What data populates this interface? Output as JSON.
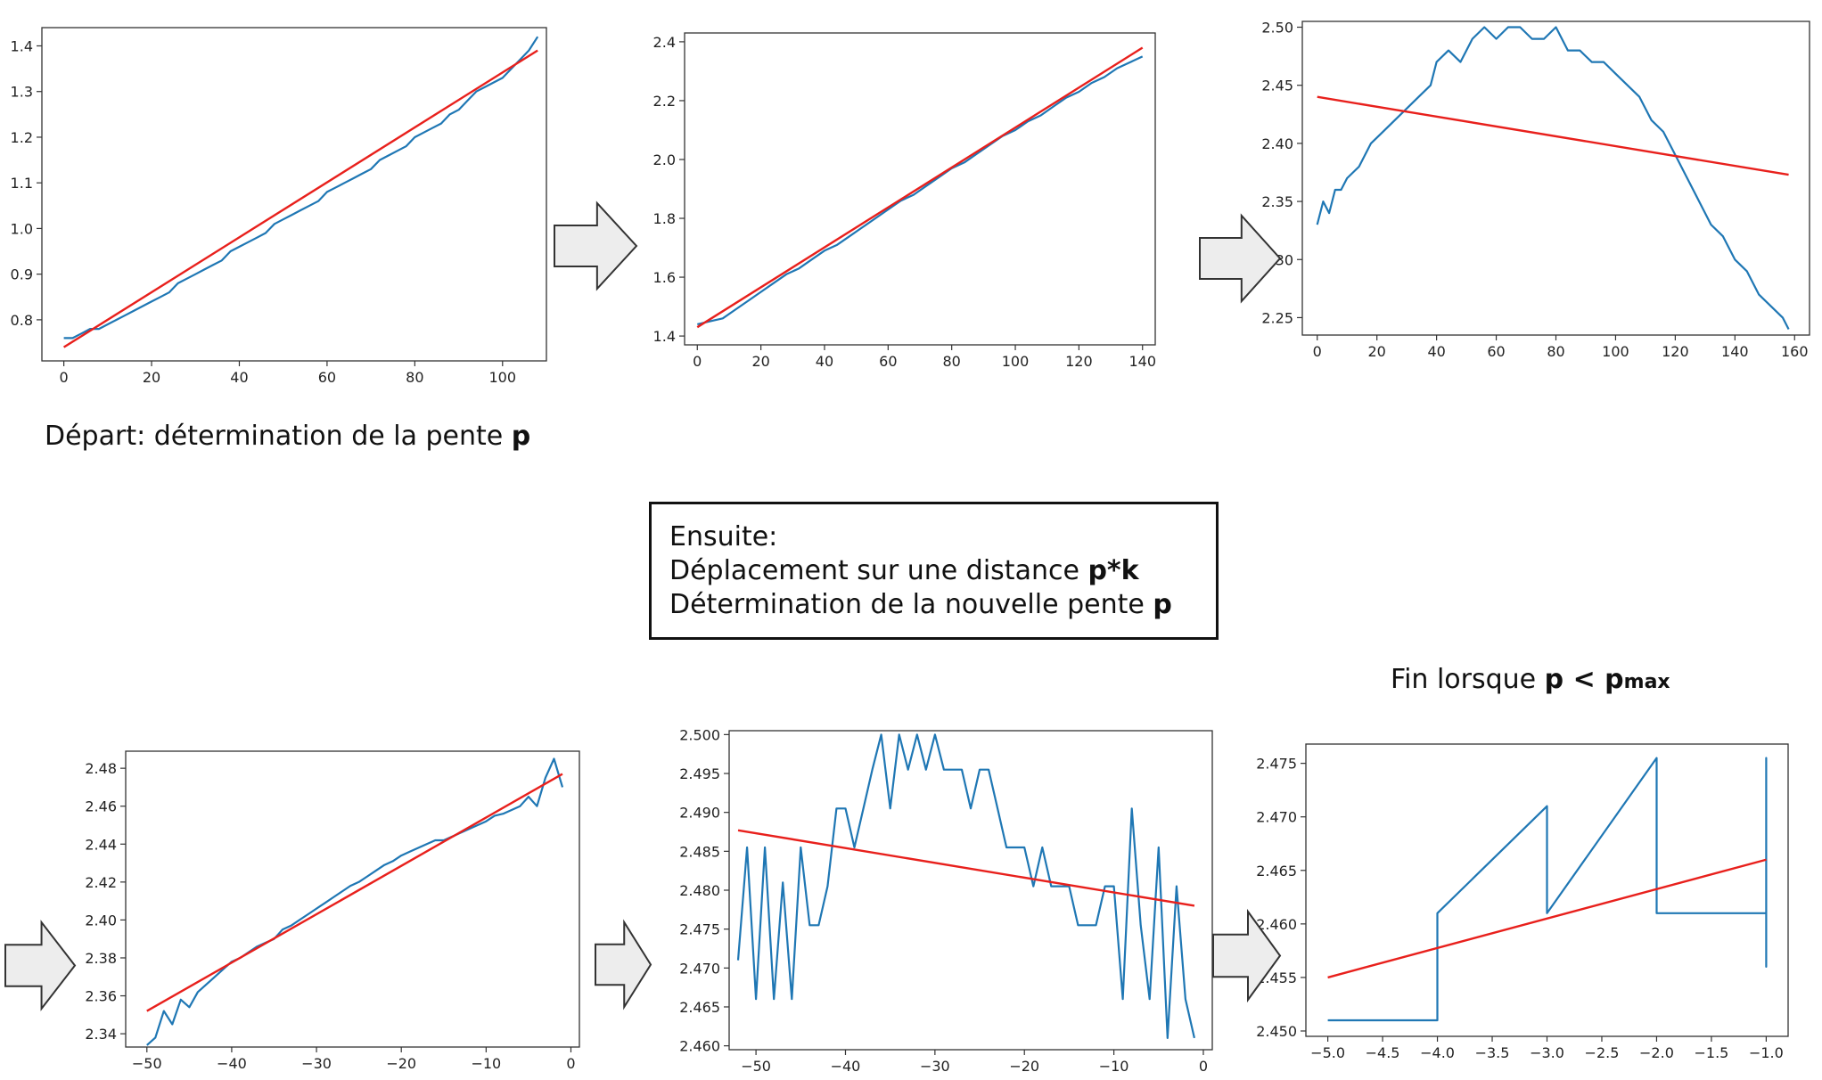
{
  "captions": {
    "start_text": "Départ: détermination de la pente ",
    "start_bold": "p",
    "box_line1": "Ensuite:",
    "box_line2_text": "Déplacement sur une distance ",
    "box_line2_bold": "p*k",
    "box_line3_text": "Détermination de la nouvelle pente ",
    "box_line3_bold": "p",
    "end_text": "Fin lorsque ",
    "end_bold_p": "p < p",
    "end_bold_sub": "max"
  },
  "colors": {
    "series": "#1f77b4",
    "fit": "#e8201c",
    "arrow_fill": "#ededed",
    "arrow_stroke": "#333333"
  },
  "chart_data": [
    {
      "type": "line",
      "xlim": [
        -5,
        110
      ],
      "ylim": [
        0.71,
        1.44
      ],
      "xticks": [
        0,
        20,
        40,
        60,
        80,
        100
      ],
      "yticks": [
        0.8,
        0.9,
        1.0,
        1.1,
        1.2,
        1.3,
        1.4
      ],
      "yfmt": 1,
      "series": [
        {
          "x": [
            0,
            2,
            4,
            6,
            8,
            10,
            12,
            14,
            16,
            18,
            20,
            22,
            24,
            26,
            28,
            30,
            32,
            34,
            36,
            38,
            40,
            42,
            44,
            46,
            48,
            50,
            52,
            54,
            56,
            58,
            60,
            62,
            64,
            66,
            68,
            70,
            72,
            74,
            76,
            78,
            80,
            82,
            84,
            86,
            88,
            90,
            92,
            94,
            96,
            98,
            100,
            102,
            104,
            106,
            108
          ],
          "y": [
            0.76,
            0.76,
            0.77,
            0.78,
            0.78,
            0.79,
            0.8,
            0.81,
            0.82,
            0.83,
            0.84,
            0.85,
            0.86,
            0.88,
            0.89,
            0.9,
            0.91,
            0.92,
            0.93,
            0.95,
            0.96,
            0.97,
            0.98,
            0.99,
            1.01,
            1.02,
            1.03,
            1.04,
            1.05,
            1.06,
            1.08,
            1.09,
            1.1,
            1.11,
            1.12,
            1.13,
            1.15,
            1.16,
            1.17,
            1.18,
            1.2,
            1.21,
            1.22,
            1.23,
            1.25,
            1.26,
            1.28,
            1.3,
            1.31,
            1.32,
            1.33,
            1.35,
            1.37,
            1.39,
            1.42
          ]
        }
      ],
      "fit": {
        "x": [
          0,
          108
        ],
        "y": [
          0.74,
          1.39
        ]
      }
    },
    {
      "type": "line",
      "xlim": [
        -4,
        144
      ],
      "ylim": [
        1.37,
        2.43
      ],
      "xticks": [
        0,
        20,
        40,
        60,
        80,
        100,
        120,
        140
      ],
      "yticks": [
        1.4,
        1.6,
        1.8,
        2.0,
        2.2,
        2.4
      ],
      "yfmt": 1,
      "series": [
        {
          "x": [
            0,
            4,
            8,
            12,
            16,
            20,
            24,
            28,
            32,
            36,
            40,
            44,
            48,
            52,
            56,
            60,
            64,
            68,
            72,
            76,
            80,
            84,
            88,
            92,
            96,
            100,
            104,
            108,
            112,
            116,
            120,
            124,
            128,
            132,
            136,
            140
          ],
          "y": [
            1.44,
            1.45,
            1.46,
            1.49,
            1.52,
            1.55,
            1.58,
            1.61,
            1.63,
            1.66,
            1.69,
            1.71,
            1.74,
            1.77,
            1.8,
            1.83,
            1.86,
            1.88,
            1.91,
            1.94,
            1.97,
            1.99,
            2.02,
            2.05,
            2.08,
            2.1,
            2.13,
            2.15,
            2.18,
            2.21,
            2.23,
            2.26,
            2.28,
            2.31,
            2.33,
            2.35
          ]
        }
      ],
      "fit": {
        "x": [
          0,
          140
        ],
        "y": [
          1.43,
          2.38
        ]
      }
    },
    {
      "type": "line",
      "xlim": [
        -5,
        165
      ],
      "ylim": [
        2.235,
        2.505
      ],
      "xticks": [
        0,
        20,
        40,
        60,
        80,
        100,
        120,
        140,
        160
      ],
      "yticks": [
        2.25,
        2.3,
        2.35,
        2.4,
        2.45,
        2.5
      ],
      "yfmt": 2,
      "series": [
        {
          "x": [
            0,
            2,
            4,
            6,
            8,
            10,
            14,
            18,
            22,
            26,
            30,
            34,
            38,
            40,
            44,
            48,
            52,
            56,
            60,
            64,
            68,
            72,
            76,
            80,
            84,
            88,
            92,
            96,
            100,
            104,
            108,
            112,
            116,
            120,
            124,
            128,
            132,
            136,
            140,
            144,
            148,
            152,
            156,
            158
          ],
          "y": [
            2.33,
            2.35,
            2.34,
            2.36,
            2.36,
            2.37,
            2.38,
            2.4,
            2.41,
            2.42,
            2.43,
            2.44,
            2.45,
            2.47,
            2.48,
            2.47,
            2.49,
            2.5,
            2.49,
            2.5,
            2.5,
            2.49,
            2.49,
            2.5,
            2.48,
            2.48,
            2.47,
            2.47,
            2.46,
            2.45,
            2.44,
            2.42,
            2.41,
            2.39,
            2.37,
            2.35,
            2.33,
            2.32,
            2.3,
            2.29,
            2.27,
            2.26,
            2.25,
            2.24
          ]
        }
      ],
      "fit": {
        "x": [
          0,
          158
        ],
        "y": [
          2.44,
          2.373
        ]
      }
    },
    {
      "type": "line",
      "xlim": [
        -52.5,
        1
      ],
      "ylim": [
        2.333,
        2.489
      ],
      "xticks": [
        -50,
        -40,
        -30,
        -20,
        -10,
        0
      ],
      "yticks": [
        2.34,
        2.36,
        2.38,
        2.4,
        2.42,
        2.44,
        2.46,
        2.48
      ],
      "yfmt": 2,
      "series": [
        {
          "x": [
            -50,
            -49,
            -48,
            -47,
            -46,
            -45,
            -44,
            -43,
            -42,
            -41,
            -40,
            -39,
            -38,
            -37,
            -36,
            -35,
            -34,
            -33,
            -32,
            -31,
            -30,
            -29,
            -28,
            -27,
            -26,
            -25,
            -24,
            -23,
            -22,
            -21,
            -20,
            -19,
            -18,
            -17,
            -16,
            -15,
            -14,
            -13,
            -12,
            -11,
            -10,
            -9,
            -8,
            -7,
            -6,
            -5,
            -4,
            -3,
            -2,
            -1
          ],
          "y": [
            2.334,
            2.338,
            2.352,
            2.345,
            2.358,
            2.354,
            2.362,
            2.366,
            2.37,
            2.374,
            2.378,
            2.38,
            2.383,
            2.386,
            2.388,
            2.39,
            2.395,
            2.397,
            2.4,
            2.403,
            2.406,
            2.409,
            2.412,
            2.415,
            2.418,
            2.42,
            2.423,
            2.426,
            2.429,
            2.431,
            2.434,
            2.436,
            2.438,
            2.44,
            2.442,
            2.442,
            2.444,
            2.446,
            2.448,
            2.45,
            2.452,
            2.455,
            2.456,
            2.458,
            2.46,
            2.465,
            2.46,
            2.475,
            2.485,
            2.47
          ]
        }
      ],
      "fit": {
        "x": [
          -50,
          -1
        ],
        "y": [
          2.352,
          2.477
        ]
      }
    },
    {
      "type": "line",
      "xlim": [
        -53,
        1
      ],
      "ylim": [
        2.4595,
        2.5005
      ],
      "xticks": [
        -50,
        -40,
        -30,
        -20,
        -10,
        0
      ],
      "yticks": [
        2.46,
        2.465,
        2.47,
        2.475,
        2.48,
        2.485,
        2.49,
        2.495,
        2.5
      ],
      "yfmt": 3,
      "series": [
        {
          "x": [
            -52,
            -51,
            -50,
            -49,
            -48,
            -47,
            -46,
            -45,
            -44,
            -43,
            -42,
            -41,
            -40,
            -39,
            -38,
            -37,
            -36,
            -35,
            -34,
            -33,
            -32,
            -31,
            -30,
            -29,
            -28,
            -27,
            -26,
            -25,
            -24,
            -23,
            -22,
            -21,
            -20,
            -19,
            -18,
            -17,
            -16,
            -15,
            -14,
            -13,
            -12,
            -11,
            -10,
            -9,
            -8,
            -7,
            -6,
            -5,
            -4,
            -3,
            -2,
            -1
          ],
          "y": [
            2.471,
            2.4855,
            2.466,
            2.4855,
            2.466,
            2.481,
            2.466,
            2.4855,
            2.4755,
            2.4755,
            2.4805,
            2.4905,
            2.4905,
            2.4855,
            2.4905,
            2.4955,
            2.5,
            2.4905,
            2.5,
            2.4955,
            2.5,
            2.4955,
            2.5,
            2.4955,
            2.4955,
            2.4955,
            2.4905,
            2.4955,
            2.4955,
            2.4905,
            2.4855,
            2.4855,
            2.4855,
            2.4805,
            2.4855,
            2.4805,
            2.4805,
            2.4805,
            2.4755,
            2.4755,
            2.4755,
            2.4805,
            2.4805,
            2.466,
            2.4905,
            2.4755,
            2.466,
            2.4855,
            2.461,
            2.4805,
            2.466,
            2.461
          ]
        }
      ],
      "fit": {
        "x": [
          -52,
          -1
        ],
        "y": [
          2.4877,
          2.478
        ]
      }
    },
    {
      "type": "line",
      "xlim": [
        -5.2,
        -0.8
      ],
      "ylim": [
        2.4495,
        2.4768
      ],
      "xticks": [
        -5.0,
        -4.5,
        -4.0,
        -3.5,
        -3.0,
        -2.5,
        -2.0,
        -1.5,
        -1.0
      ],
      "yticks": [
        2.45,
        2.455,
        2.46,
        2.465,
        2.47,
        2.475
      ],
      "yfmt": 3,
      "xfmt": 1,
      "series": [
        {
          "x": [
            -5.0,
            -4.0,
            -4.0,
            -3.0,
            -3.0,
            -2.0,
            -2.0,
            -1.0,
            -1.0,
            -1.0,
            -1.0,
            -1.0
          ],
          "y": [
            2.451,
            2.451,
            2.461,
            2.471,
            2.461,
            2.4755,
            2.461,
            2.461,
            2.4755,
            2.456,
            2.471,
            2.461
          ]
        }
      ],
      "fit": {
        "x": [
          -5.0,
          -1.0
        ],
        "y": [
          2.455,
          2.466
        ]
      }
    }
  ]
}
